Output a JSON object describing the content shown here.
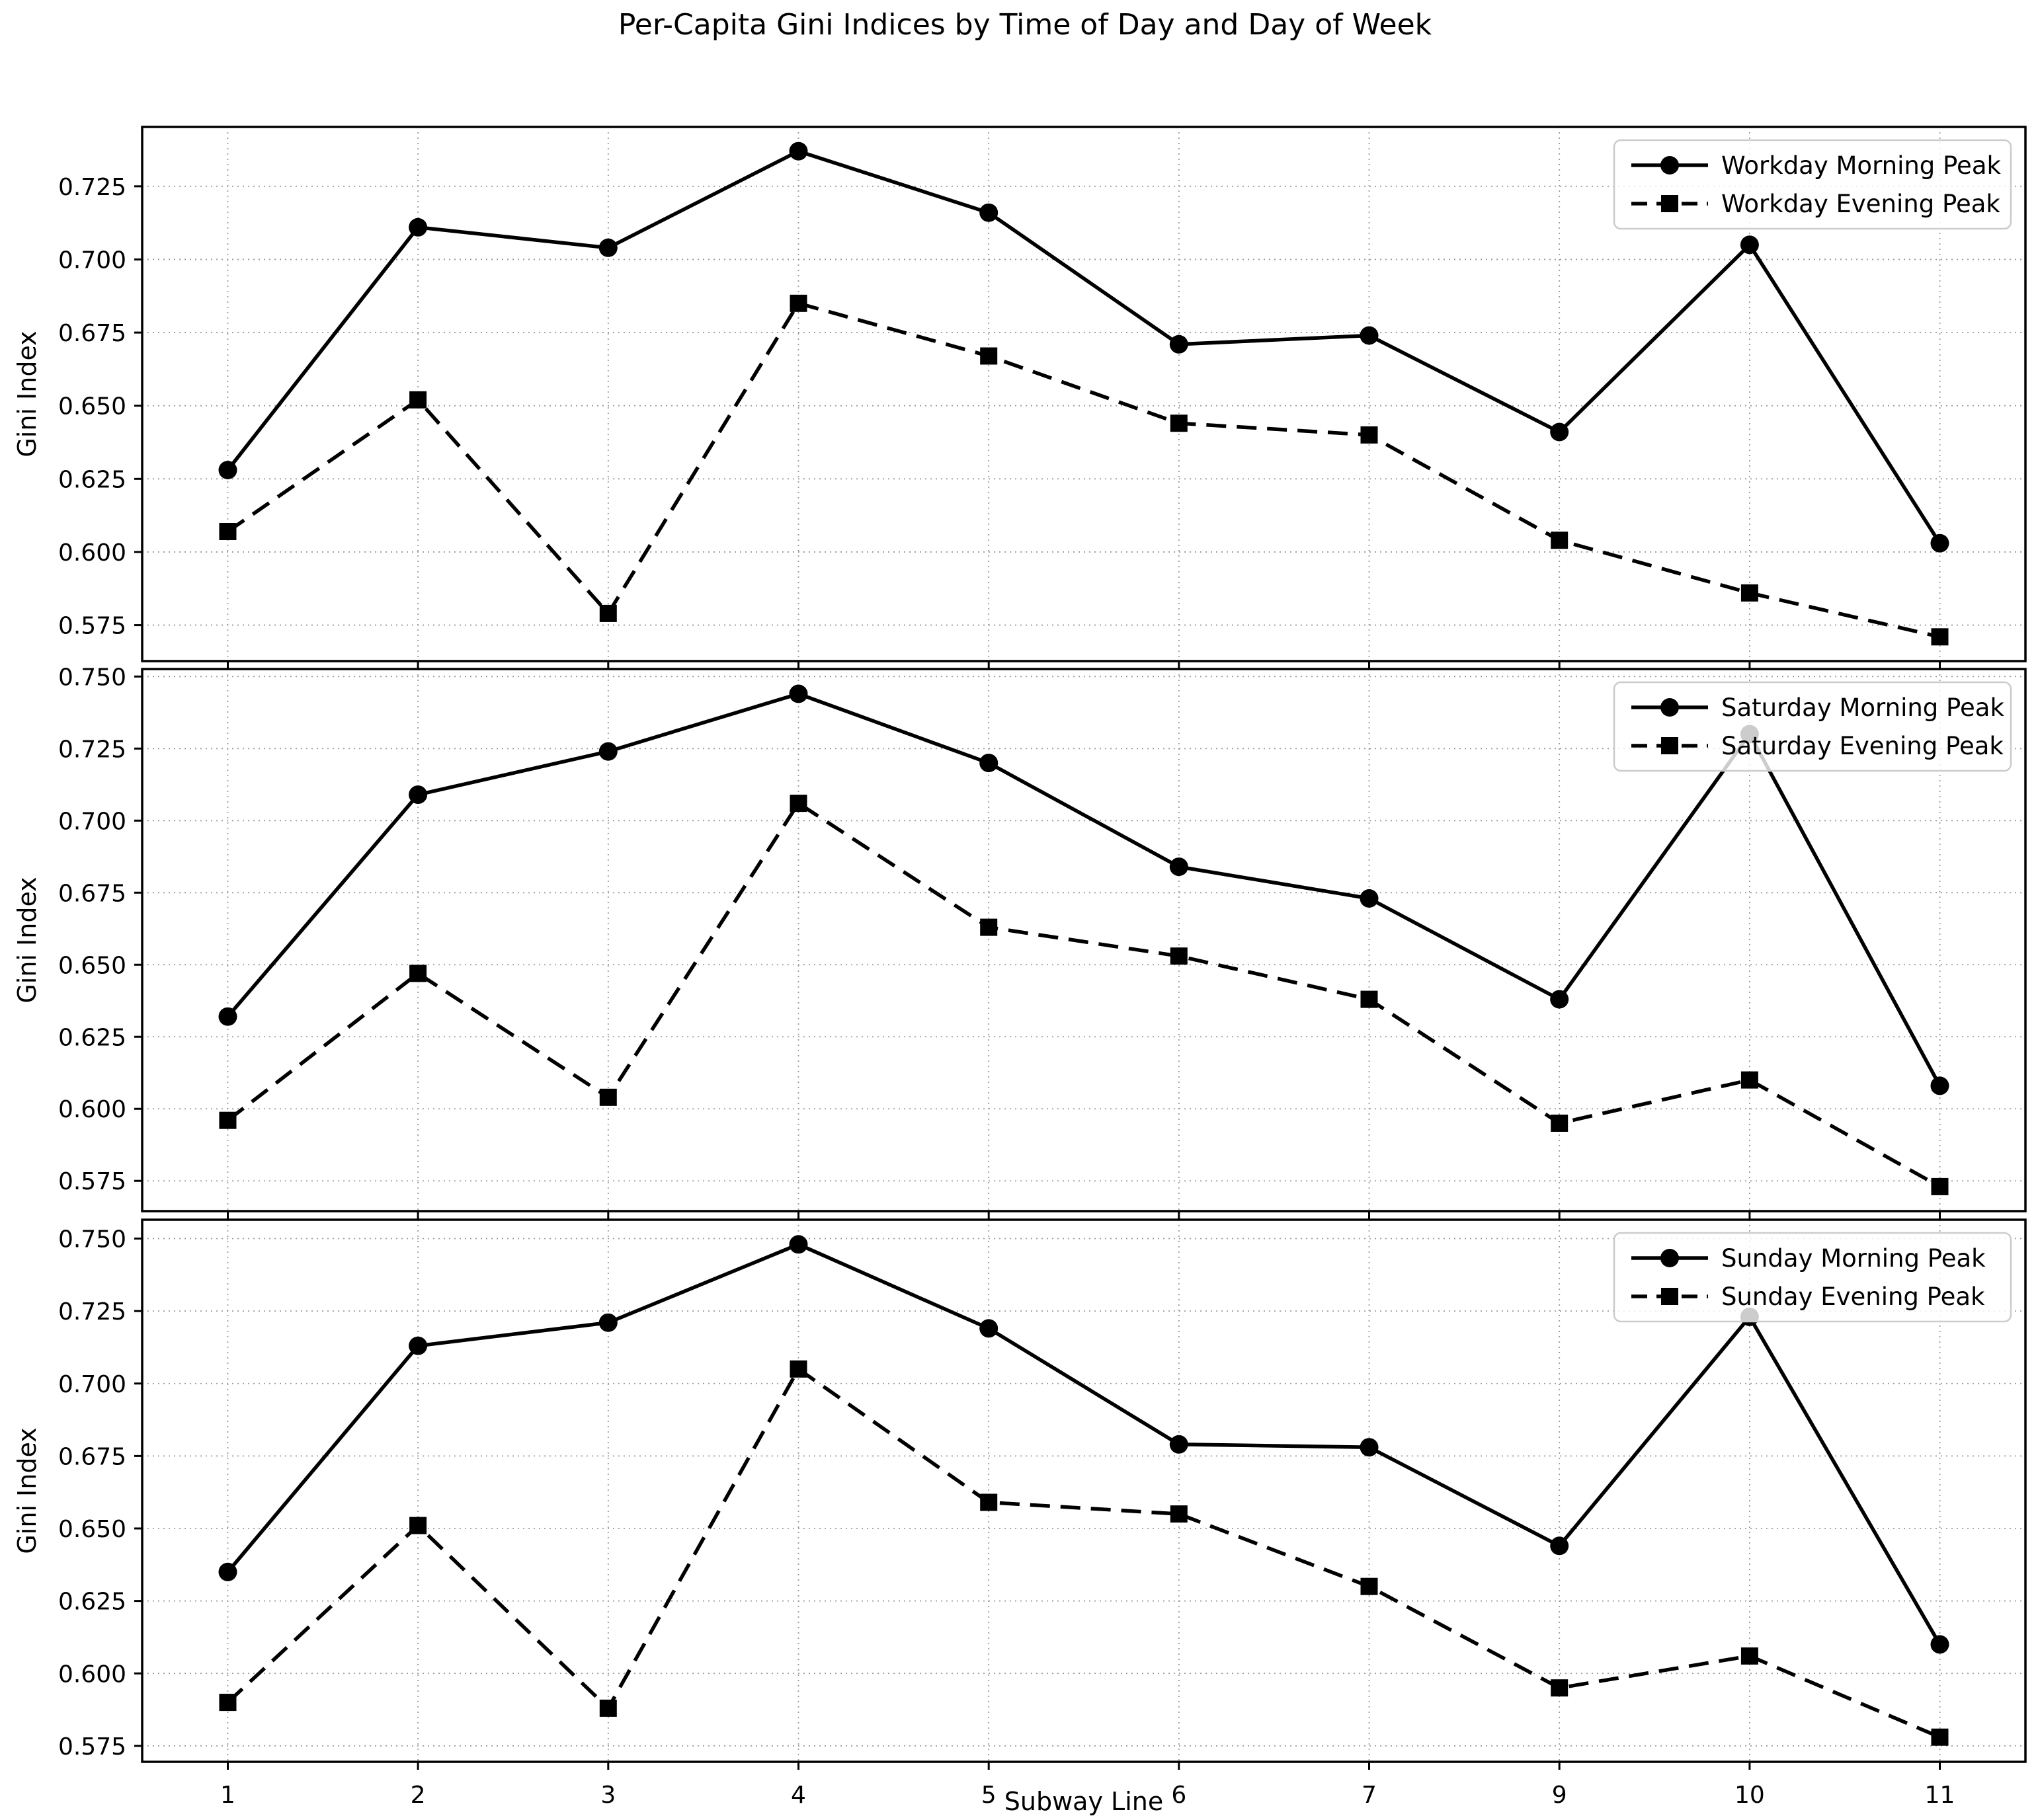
{
  "title": "Per-Capita Gini Indices by Time of Day and Day of Week",
  "xlabel": "Subway Line",
  "ylabel": "Gini Index",
  "colors": {
    "line": "#000000",
    "grid": "#9a9a9a",
    "legend_border": "#cccccc",
    "background": "#ffffff"
  },
  "chart_data": [
    {
      "type": "line",
      "subplot": "workday",
      "categories": [
        "1",
        "2",
        "3",
        "4",
        "5",
        "6",
        "7",
        "9",
        "10",
        "11"
      ],
      "xlabel": "Subway Line",
      "ylabel": "Gini Index",
      "grid": true,
      "legend_position": "upper right",
      "ylim": [
        0.5627,
        0.7453
      ],
      "yticks": [
        0.575,
        0.6,
        0.625,
        0.65,
        0.675,
        0.7,
        0.725
      ],
      "series": [
        {
          "name": "Workday Morning Peak",
          "marker": "circle",
          "linestyle": "solid",
          "values": [
            0.628,
            0.711,
            0.704,
            0.737,
            0.716,
            0.671,
            0.674,
            0.641,
            0.705,
            0.603
          ]
        },
        {
          "name": "Workday Evening Peak",
          "marker": "square",
          "linestyle": "dashed",
          "values": [
            0.607,
            0.652,
            0.579,
            0.685,
            0.667,
            0.644,
            0.64,
            0.604,
            0.586,
            0.571
          ]
        }
      ]
    },
    {
      "type": "line",
      "subplot": "saturday",
      "categories": [
        "1",
        "2",
        "3",
        "4",
        "5",
        "6",
        "7",
        "9",
        "10",
        "11"
      ],
      "xlabel": "Subway Line",
      "ylabel": "Gini Index",
      "grid": true,
      "legend_position": "upper right",
      "ylim": [
        0.5645,
        0.7526
      ],
      "yticks": [
        0.575,
        0.6,
        0.625,
        0.65,
        0.675,
        0.7,
        0.725,
        0.75
      ],
      "series": [
        {
          "name": "Saturday Morning Peak",
          "marker": "circle",
          "linestyle": "solid",
          "values": [
            0.632,
            0.709,
            0.724,
            0.744,
            0.72,
            0.684,
            0.673,
            0.638,
            0.73,
            0.608
          ]
        },
        {
          "name": "Saturday Evening Peak",
          "marker": "square",
          "linestyle": "dashed",
          "values": [
            0.596,
            0.647,
            0.604,
            0.706,
            0.663,
            0.653,
            0.638,
            0.595,
            0.61,
            0.573
          ]
        }
      ]
    },
    {
      "type": "line",
      "subplot": "sunday",
      "categories": [
        "1",
        "2",
        "3",
        "4",
        "5",
        "6",
        "7",
        "9",
        "10",
        "11"
      ],
      "xlabel": "Subway Line",
      "ylabel": "Gini Index",
      "grid": true,
      "legend_position": "upper right",
      "ylim": [
        0.5695,
        0.7565
      ],
      "yticks": [
        0.575,
        0.6,
        0.625,
        0.65,
        0.675,
        0.7,
        0.725,
        0.75
      ],
      "series": [
        {
          "name": "Sunday Morning Peak",
          "marker": "circle",
          "linestyle": "solid",
          "values": [
            0.635,
            0.713,
            0.721,
            0.748,
            0.719,
            0.679,
            0.678,
            0.644,
            0.723,
            0.61
          ]
        },
        {
          "name": "Sunday Evening Peak",
          "marker": "square",
          "linestyle": "dashed",
          "values": [
            0.59,
            0.651,
            0.588,
            0.705,
            0.659,
            0.655,
            0.63,
            0.595,
            0.606,
            0.578
          ]
        }
      ]
    }
  ]
}
